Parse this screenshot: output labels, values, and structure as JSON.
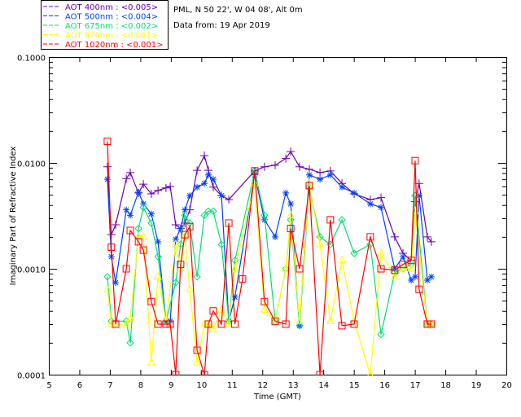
{
  "chart_data": {
    "type": "line",
    "header": [
      "PML, N 50 22', W 04 08', Alt 0m",
      "Data from: 19 Apr 2019"
    ],
    "xlabel": "Time (GMT)",
    "ylabel": "Imaginary Part of Refractive Index",
    "xlim": [
      5,
      20
    ],
    "ylim": [
      0.0001,
      0.1
    ],
    "yscale": "log",
    "xticks": [
      "5",
      "6",
      "7",
      "8",
      "9",
      "10",
      "11",
      "12",
      "13",
      "14",
      "15",
      "16",
      "17",
      "18",
      "19",
      "20"
    ],
    "yticks": [
      "0.0001",
      "0.0010",
      "0.0100",
      "0.1000"
    ],
    "legend_placement": "top-left, above plot",
    "series": [
      {
        "name": "AOT  400nm : <0.005>",
        "color": "#6a00b0",
        "marker": "plus",
        "x": [
          6.92,
          7.05,
          7.19,
          7.54,
          7.67,
          7.94,
          8.1,
          8.36,
          8.58,
          8.84,
          8.98,
          9.16,
          9.32,
          9.46,
          9.62,
          9.86,
          10.1,
          10.23,
          10.39,
          10.66,
          10.9,
          11.75,
          12.07,
          12.42,
          12.77,
          12.93,
          13.22,
          13.54,
          13.89,
          14.23,
          14.61,
          15.01,
          15.54,
          15.89,
          16.34,
          16.61,
          16.88,
          17.01,
          17.14,
          17.41,
          17.54
        ],
        "y": [
          0.0092,
          0.0021,
          0.0026,
          0.0071,
          0.0081,
          0.0052,
          0.0063,
          0.0051,
          0.0055,
          0.0058,
          0.006,
          0.0026,
          0.0024,
          0.0027,
          0.0036,
          0.0085,
          0.0117,
          0.0085,
          0.0059,
          0.0049,
          0.0045,
          0.0084,
          0.0092,
          0.0095,
          0.011,
          0.0128,
          0.0092,
          0.0087,
          0.0081,
          0.0084,
          0.0064,
          0.0051,
          0.0045,
          0.0047,
          0.002,
          0.0014,
          0.0012,
          0.0043,
          0.0064,
          0.002,
          0.0018
        ]
      },
      {
        "name": "AOT  500nm : <0.004>",
        "color": "#0040ff",
        "marker": "asterisk",
        "x": [
          6.92,
          7.05,
          7.19,
          7.54,
          7.67,
          7.94,
          8.1,
          8.36,
          8.58,
          8.84,
          8.98,
          9.16,
          9.32,
          9.46,
          9.62,
          9.86,
          10.1,
          10.23,
          10.39,
          10.66,
          10.9,
          11.1,
          11.75,
          12.07,
          12.42,
          12.77,
          12.93,
          13.22,
          13.54,
          13.89,
          14.23,
          14.61,
          15.01,
          15.54,
          15.89,
          16.34,
          16.61,
          16.88,
          17.01,
          17.14,
          17.41,
          17.54
        ],
        "y": [
          0.007,
          0.0013,
          0.00074,
          0.0036,
          0.0032,
          0.0053,
          0.0041,
          0.0033,
          0.0018,
          0.00032,
          0.00032,
          0.0019,
          0.0024,
          0.0036,
          0.0049,
          0.0059,
          0.0064,
          0.0077,
          0.007,
          0.0049,
          0.00032,
          0.00054,
          0.0077,
          0.0029,
          0.002,
          0.0052,
          0.0041,
          0.00029,
          0.0077,
          0.007,
          0.0077,
          0.0059,
          0.0052,
          0.0041,
          0.0038,
          0.001,
          0.0013,
          0.00078,
          0.00084,
          0.0049,
          0.00078,
          0.00084
        ]
      },
      {
        "name": "AOT  675nm : <0.002>",
        "color": "#00e070",
        "marker": "diamond",
        "x": [
          6.92,
          7.05,
          7.54,
          7.67,
          7.94,
          8.1,
          8.36,
          8.58,
          8.84,
          9.16,
          9.32,
          9.46,
          9.62,
          9.86,
          10.1,
          10.23,
          10.39,
          10.66,
          10.9,
          11.1,
          11.75,
          12.07,
          12.42,
          12.77,
          12.93,
          13.22,
          13.54,
          13.89,
          14.23,
          14.61,
          15.01,
          15.54,
          15.89,
          16.34,
          16.61,
          16.88,
          17.01,
          17.41,
          17.54
        ],
        "y": [
          0.00084,
          0.00032,
          0.00032,
          0.0002,
          0.0024,
          0.0038,
          0.0027,
          0.0013,
          0.00032,
          0.00074,
          0.0017,
          0.0032,
          0.0027,
          0.00084,
          0.0032,
          0.0035,
          0.0035,
          0.0017,
          0.00032,
          0.0012,
          0.0084,
          0.0032,
          0.00032,
          0.001,
          0.0029,
          0.00029,
          0.0059,
          0.002,
          0.0017,
          0.0029,
          0.0014,
          0.0017,
          0.00024,
          0.00092,
          0.001,
          0.0011,
          0.0049,
          0.0003,
          0.0003
        ]
      },
      {
        "name": "AOT  870nm : <0.001>",
        "color": "#ffff00",
        "marker": "triangle",
        "x": [
          6.92,
          7.05,
          7.54,
          7.67,
          7.94,
          8.1,
          8.36,
          8.58,
          8.84,
          9.16,
          9.32,
          9.46,
          9.62,
          9.86,
          10.1,
          10.23,
          10.39,
          10.66,
          10.9,
          11.1,
          11.75,
          12.07,
          12.42,
          12.77,
          12.93,
          13.22,
          13.54,
          13.89,
          14.23,
          14.61,
          15.01,
          15.54,
          15.89,
          16.34,
          16.61,
          16.88,
          17.01,
          17.41,
          17.54
        ],
        "y": [
          0.00064,
          0.0003,
          0.0003,
          0.00034,
          0.002,
          0.002,
          0.00013,
          0.00084,
          0.00032,
          0.0017,
          0.001,
          0.002,
          0.00064,
          0.00013,
          0.0003,
          0.0003,
          0.00027,
          0.00041,
          0.0003,
          0.001,
          0.0064,
          0.00041,
          0.00032,
          0.001,
          0.0032,
          0.00032,
          0.0064,
          0.0017,
          0.00032,
          0.0012,
          0.00032,
          0.0001,
          0.0014,
          0.00084,
          0.001,
          0.001,
          0.0035,
          0.0003,
          0.0003
        ]
      },
      {
        "name": "AOT 1020nm : <0.001>",
        "color": "#ff0000",
        "marker": "square",
        "x": [
          6.92,
          7.05,
          7.19,
          7.54,
          7.67,
          7.94,
          8.1,
          8.36,
          8.58,
          8.84,
          8.98,
          9.16,
          9.32,
          9.46,
          9.62,
          9.86,
          10.1,
          10.23,
          10.39,
          10.66,
          10.9,
          11.1,
          11.35,
          11.75,
          12.07,
          12.42,
          12.77,
          12.93,
          13.22,
          13.54,
          13.89,
          14.23,
          14.61,
          15.01,
          15.54,
          15.89,
          16.34,
          16.61,
          16.88,
          17.01,
          17.14,
          17.41,
          17.54
        ],
        "y": [
          0.016,
          0.0016,
          0.0003,
          0.001,
          0.0023,
          0.0018,
          0.0015,
          0.00049,
          0.0003,
          0.0003,
          0.0003,
          0.0001,
          0.0011,
          0.0021,
          0.0025,
          0.00017,
          0.0001,
          0.0003,
          0.0004,
          0.0003,
          0.0027,
          0.0003,
          0.0008,
          0.0084,
          0.00049,
          0.00032,
          0.0003,
          0.0024,
          0.001,
          0.0061,
          0.0001,
          0.0029,
          0.00029,
          0.0003,
          0.002,
          0.001,
          0.00097,
          0.0011,
          0.0012,
          0.0105,
          0.00064,
          0.0003,
          0.0003
        ]
      }
    ]
  }
}
